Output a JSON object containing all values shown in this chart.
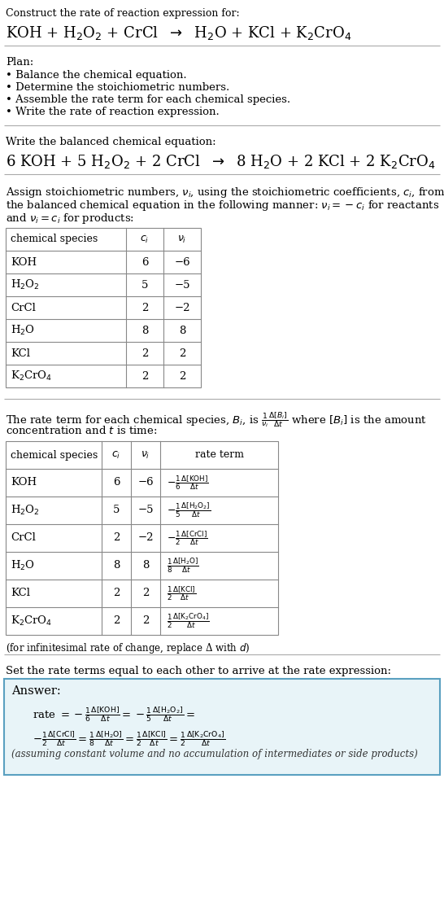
{
  "bg_color": "#ffffff",
  "text_color": "#000000",
  "title_line1": "Construct the rate of reaction expression for:",
  "plan_header": "Plan:",
  "plan_items": [
    "• Balance the chemical equation.",
    "• Determine the stoichiometric numbers.",
    "• Assemble the rate term for each chemical species.",
    "• Write the rate of reaction expression."
  ],
  "balanced_header": "Write the balanced chemical equation:",
  "stoich_para_lines": [
    "Assign stoichiometric numbers, $\\nu_i$, using the stoichiometric coefficients, $c_i$, from",
    "the balanced chemical equation in the following manner: $\\nu_i = -c_i$ for reactants",
    "and $\\nu_i = c_i$ for products:"
  ],
  "table1_headers": [
    "chemical species",
    "$c_i$",
    "$\\nu_i$"
  ],
  "table1_rows": [
    [
      "KOH",
      "6",
      "−6"
    ],
    [
      "H$_2$O$_2$",
      "5",
      "−5"
    ],
    [
      "CrCl",
      "2",
      "−2"
    ],
    [
      "H$_2$O",
      "8",
      "8"
    ],
    [
      "KCl",
      "2",
      "2"
    ],
    [
      "K$_2$CrO$_4$",
      "2",
      "2"
    ]
  ],
  "rate_para_lines": [
    "The rate term for each chemical species, $B_i$, is $\\frac{1}{\\nu_i}\\frac{\\Delta[B_i]}{\\Delta t}$ where $[B_i]$ is the amount",
    "concentration and $t$ is time:"
  ],
  "table2_headers": [
    "chemical species",
    "$c_i$",
    "$\\nu_i$",
    "rate term"
  ],
  "table2_rows": [
    [
      "KOH",
      "6",
      "−6",
      "$-\\frac{1}{6}\\frac{\\Delta[\\mathrm{KOH}]}{\\Delta t}$"
    ],
    [
      "H$_2$O$_2$",
      "5",
      "−5",
      "$-\\frac{1}{5}\\frac{\\Delta[\\mathrm{H_2O_2}]}{\\Delta t}$"
    ],
    [
      "CrCl",
      "2",
      "−2",
      "$-\\frac{1}{2}\\frac{\\Delta[\\mathrm{CrCl}]}{\\Delta t}$"
    ],
    [
      "H$_2$O",
      "8",
      "8",
      "$\\frac{1}{8}\\frac{\\Delta[\\mathrm{H_2O}]}{\\Delta t}$"
    ],
    [
      "KCl",
      "2",
      "2",
      "$\\frac{1}{2}\\frac{\\Delta[\\mathrm{KCl}]}{\\Delta t}$"
    ],
    [
      "K$_2$CrO$_4$",
      "2",
      "2",
      "$\\frac{1}{2}\\frac{\\Delta[\\mathrm{K_2CrO_4}]}{\\Delta t}$"
    ]
  ],
  "infinitesimal_note": "(for infinitesimal rate of change, replace Δ with $d$)",
  "set_rate_para": "Set the rate terms equal to each other to arrive at the rate expression:",
  "answer_header": "Answer:",
  "answer_box_color": "#e8f4f8",
  "answer_border_color": "#5aa0c0",
  "answer_note": "(assuming constant volume and no accumulation of intermediates or side products)"
}
